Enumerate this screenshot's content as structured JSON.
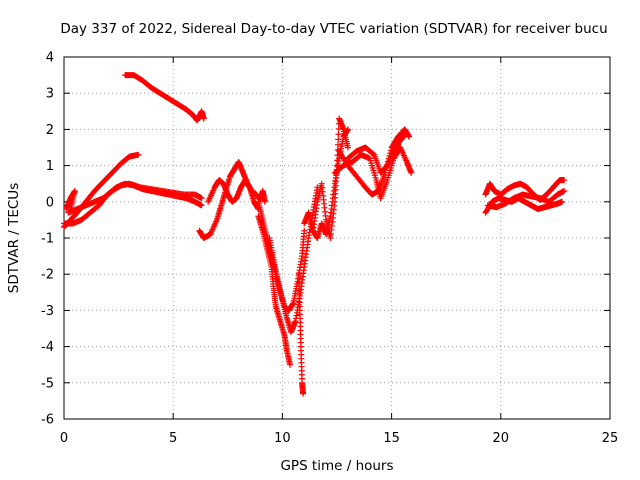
{
  "chart_data": {
    "type": "scatter",
    "title": "Day 337 of 2022, Sidereal Day-to-day VTEC variation (SDTVAR) for receiver bucu",
    "xlabel": "GPS time / hours",
    "ylabel": "SDTVAR / TECUs",
    "xlim": [
      0,
      25
    ],
    "ylim": [
      -6,
      4
    ],
    "xticks": [
      "0",
      "5",
      "10",
      "15",
      "20",
      "25"
    ],
    "yticks": [
      "-6",
      "-5",
      "-4",
      "-3",
      "-2",
      "-1",
      "0",
      "1",
      "2",
      "3",
      "4"
    ],
    "grid": true,
    "marker": "+",
    "series": [
      {
        "name": "satellite tracks",
        "color": "#ff0000",
        "tracks": [
          [
            [
              0.0,
              -0.7
            ],
            [
              0.3,
              -0.5
            ],
            [
              0.6,
              -0.3
            ],
            [
              1.0,
              0.0
            ],
            [
              1.4,
              0.3
            ],
            [
              1.8,
              0.55
            ],
            [
              2.2,
              0.8
            ],
            [
              2.6,
              1.05
            ],
            [
              3.0,
              1.25
            ],
            [
              3.4,
              1.3
            ]
          ],
          [
            [
              0.0,
              -0.6
            ],
            [
              0.4,
              -0.6
            ],
            [
              0.8,
              -0.5
            ],
            [
              1.2,
              -0.3
            ],
            [
              1.6,
              -0.1
            ],
            [
              2.0,
              0.2
            ],
            [
              2.4,
              0.4
            ],
            [
              2.8,
              0.5
            ],
            [
              3.2,
              0.45
            ],
            [
              3.6,
              0.35
            ],
            [
              4.0,
              0.3
            ],
            [
              4.4,
              0.25
            ],
            [
              4.8,
              0.2
            ],
            [
              5.2,
              0.15
            ],
            [
              5.6,
              0.1
            ],
            [
              6.0,
              0.0
            ],
            [
              6.3,
              -0.1
            ]
          ],
          [
            [
              0.2,
              -0.3
            ],
            [
              0.6,
              -0.2
            ],
            [
              1.0,
              -0.1
            ],
            [
              1.4,
              0.0
            ],
            [
              1.8,
              0.1
            ],
            [
              2.2,
              0.3
            ],
            [
              2.6,
              0.45
            ],
            [
              3.0,
              0.5
            ],
            [
              3.5,
              0.4
            ],
            [
              4.0,
              0.35
            ],
            [
              4.5,
              0.3
            ],
            [
              5.0,
              0.25
            ],
            [
              5.5,
              0.2
            ],
            [
              6.0,
              0.2
            ],
            [
              6.3,
              0.1
            ]
          ],
          [
            [
              0.3,
              -0.2
            ],
            [
              0.5,
              0.3
            ],
            [
              0.3,
              0.1
            ],
            [
              0.1,
              -0.2
            ]
          ],
          [
            [
              2.8,
              3.5
            ],
            [
              3.2,
              3.5
            ],
            [
              3.6,
              3.35
            ],
            [
              4.0,
              3.15
            ],
            [
              4.4,
              3.0
            ],
            [
              4.8,
              2.85
            ],
            [
              5.2,
              2.7
            ],
            [
              5.6,
              2.55
            ],
            [
              5.9,
              2.4
            ],
            [
              6.1,
              2.25
            ],
            [
              6.3,
              2.5
            ],
            [
              6.4,
              2.3
            ]
          ],
          [
            [
              6.2,
              -0.8
            ],
            [
              6.4,
              -1.0
            ],
            [
              6.7,
              -0.9
            ],
            [
              7.0,
              -0.5
            ],
            [
              7.2,
              -0.1
            ],
            [
              7.4,
              0.3
            ],
            [
              7.6,
              0.7
            ],
            [
              7.8,
              0.9
            ],
            [
              8.0,
              1.1
            ],
            [
              8.2,
              0.8
            ],
            [
              8.4,
              0.5
            ],
            [
              8.6,
              0.3
            ],
            [
              8.8,
              0.2
            ],
            [
              9.0,
              0.05
            ],
            [
              9.1,
              0.3
            ],
            [
              9.2,
              0.0
            ]
          ],
          [
            [
              6.6,
              0.0
            ],
            [
              6.9,
              0.4
            ],
            [
              7.1,
              0.6
            ],
            [
              7.3,
              0.5
            ],
            [
              7.5,
              0.2
            ],
            [
              7.7,
              0.0
            ],
            [
              7.9,
              0.1
            ],
            [
              8.1,
              0.4
            ],
            [
              8.3,
              0.6
            ],
            [
              8.5,
              0.4
            ],
            [
              8.7,
              0.0
            ],
            [
              8.9,
              -0.2
            ]
          ],
          [
            [
              8.9,
              -0.4
            ],
            [
              9.1,
              -0.8
            ],
            [
              9.3,
              -1.3
            ],
            [
              9.5,
              -1.8
            ],
            [
              9.6,
              -2.4
            ],
            [
              9.7,
              -2.9
            ],
            [
              9.9,
              -3.3
            ],
            [
              10.1,
              -3.7
            ],
            [
              10.2,
              -4.1
            ],
            [
              10.35,
              -4.5
            ]
          ],
          [
            [
              8.9,
              0.0
            ],
            [
              9.1,
              -0.5
            ],
            [
              9.3,
              -1.0
            ],
            [
              9.5,
              -1.5
            ],
            [
              9.7,
              -2.0
            ],
            [
              9.9,
              -2.5
            ],
            [
              10.1,
              -2.9
            ],
            [
              10.3,
              -3.0
            ],
            [
              10.5,
              -2.8
            ],
            [
              10.7,
              -2.2
            ],
            [
              10.9,
              -1.5
            ],
            [
              11.0,
              -0.8
            ]
          ],
          [
            [
              9.4,
              -1.0
            ],
            [
              9.6,
              -1.6
            ],
            [
              9.8,
              -2.2
            ],
            [
              10.0,
              -2.7
            ],
            [
              10.2,
              -3.2
            ],
            [
              10.4,
              -3.6
            ],
            [
              10.6,
              -3.3
            ],
            [
              10.8,
              -2.6
            ],
            [
              11.0,
              -1.8
            ],
            [
              11.2,
              -1.0
            ],
            [
              11.4,
              -0.3
            ],
            [
              11.6,
              0.4
            ]
          ],
          [
            [
              10.75,
              -2.0
            ],
            [
              10.8,
              -3.0
            ],
            [
              10.85,
              -4.0
            ],
            [
              10.9,
              -5.0
            ],
            [
              10.95,
              -5.3
            ]
          ],
          [
            [
              11.0,
              -0.6
            ],
            [
              11.2,
              -0.3
            ],
            [
              11.4,
              -0.8
            ],
            [
              11.6,
              -1.0
            ],
            [
              11.8,
              -0.6
            ],
            [
              12.0,
              -0.9
            ],
            [
              12.2,
              -0.4
            ],
            [
              12.4,
              0.5
            ],
            [
              12.6,
              1.2
            ],
            [
              12.8,
              1.8
            ],
            [
              13.0,
              2.0
            ]
          ],
          [
            [
              11.4,
              -0.8
            ],
            [
              11.6,
              0.0
            ],
            [
              11.8,
              0.5
            ],
            [
              12.0,
              -0.5
            ],
            [
              12.2,
              -1.0
            ],
            [
              12.4,
              0.0
            ],
            [
              12.5,
              1.0
            ],
            [
              12.6,
              2.3
            ],
            [
              12.8,
              2.0
            ],
            [
              13.0,
              1.5
            ]
          ],
          [
            [
              12.4,
              0.8
            ],
            [
              12.8,
              1.0
            ],
            [
              13.2,
              1.1
            ],
            [
              13.6,
              1.3
            ],
            [
              14.0,
              1.2
            ],
            [
              14.3,
              0.6
            ],
            [
              14.5,
              0.1
            ],
            [
              14.8,
              0.6
            ],
            [
              15.1,
              1.2
            ],
            [
              15.4,
              1.5
            ],
            [
              15.7,
              1.1
            ],
            [
              15.9,
              0.8
            ]
          ],
          [
            [
              12.6,
              1.4
            ],
            [
              13.0,
              1.0
            ],
            [
              13.4,
              0.7
            ],
            [
              13.8,
              0.4
            ],
            [
              14.1,
              0.2
            ],
            [
              14.4,
              0.3
            ],
            [
              14.7,
              0.8
            ],
            [
              15.0,
              1.5
            ],
            [
              15.3,
              1.8
            ],
            [
              15.6,
              2.0
            ],
            [
              15.8,
              1.8
            ]
          ],
          [
            [
              13.0,
              1.2
            ],
            [
              13.4,
              1.4
            ],
            [
              13.8,
              1.5
            ],
            [
              14.2,
              1.3
            ],
            [
              14.5,
              0.8
            ],
            [
              14.8,
              1.0
            ],
            [
              15.1,
              1.4
            ],
            [
              15.4,
              1.7
            ],
            [
              15.7,
              1.9
            ]
          ],
          [
            [
              19.3,
              -0.3
            ],
            [
              19.6,
              0.0
            ],
            [
              19.9,
              0.1
            ],
            [
              20.2,
              0.05
            ],
            [
              20.5,
              0.0
            ],
            [
              20.8,
              0.1
            ],
            [
              21.1,
              0.0
            ],
            [
              21.4,
              -0.1
            ],
            [
              21.7,
              -0.2
            ],
            [
              22.0,
              -0.15
            ],
            [
              22.3,
              -0.1
            ],
            [
              22.6,
              -0.05
            ],
            [
              22.8,
              0.0
            ]
          ],
          [
            [
              19.3,
              0.2
            ],
            [
              19.5,
              0.5
            ],
            [
              19.7,
              0.3
            ],
            [
              20.0,
              0.2
            ],
            [
              20.3,
              0.35
            ],
            [
              20.6,
              0.45
            ],
            [
              20.9,
              0.5
            ],
            [
              21.2,
              0.4
            ],
            [
              21.5,
              0.2
            ],
            [
              21.8,
              0.05
            ],
            [
              22.1,
              0.2
            ],
            [
              22.4,
              0.4
            ],
            [
              22.7,
              0.6
            ],
            [
              22.9,
              0.6
            ]
          ],
          [
            [
              19.4,
              -0.1
            ],
            [
              19.8,
              -0.15
            ],
            [
              20.2,
              -0.05
            ],
            [
              20.6,
              0.1
            ],
            [
              21.0,
              0.2
            ],
            [
              21.4,
              0.15
            ],
            [
              21.8,
              0.1
            ],
            [
              22.2,
              0.0
            ],
            [
              22.6,
              0.2
            ],
            [
              22.9,
              0.3
            ]
          ]
        ]
      }
    ]
  }
}
